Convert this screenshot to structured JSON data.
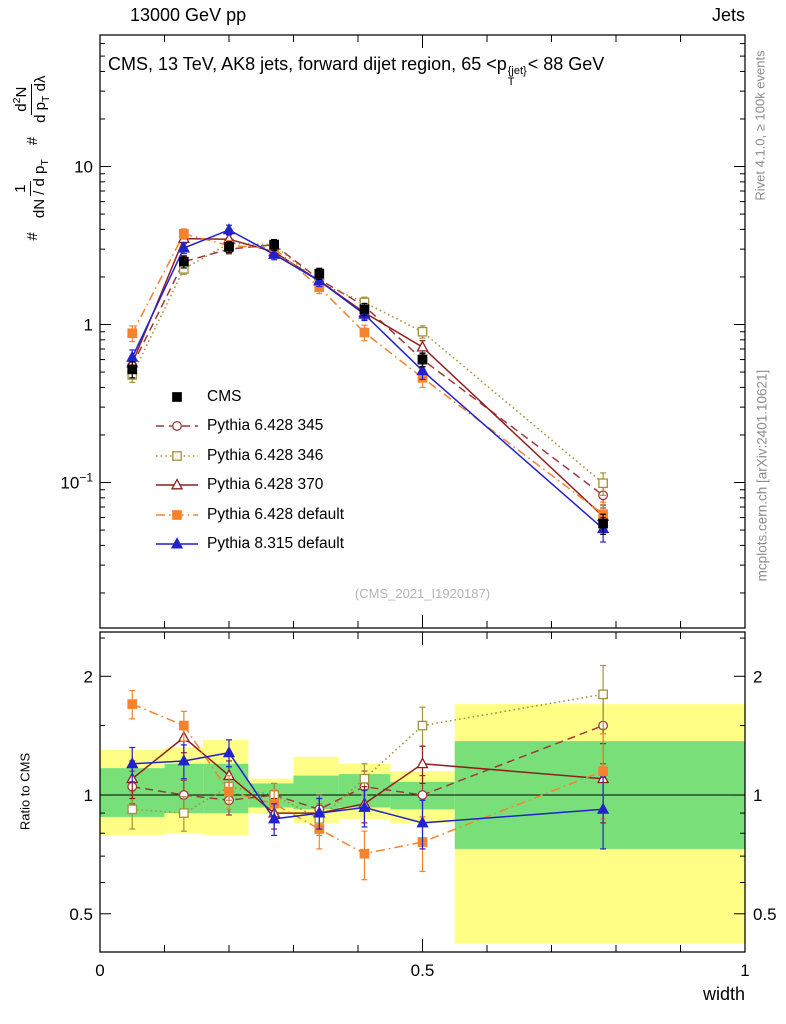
{
  "header": {
    "left": "13000 GeV pp",
    "right": "Jets"
  },
  "title": {
    "a": "CMS, 13 TeV, AK8 jets, forward dijet region, 65 <",
    "p": "p",
    "sup": "{jet}",
    "sub": "T",
    "b": "< 88 GeV"
  },
  "ylabel": {
    "hash1": "#",
    "f1_num": "1",
    "f1_den_a": "dN / d p",
    "f1_den_sub": "T",
    "hash2": "#",
    "f2_num_a": "d",
    "f2_num_sup": "2",
    "f2_num_b": "N",
    "f2_den_a": "d p",
    "f2_den_sub": "T",
    "f2_den_b": " dλ"
  },
  "watermark": "(CMS_2021_I1920187)",
  "side_notes": {
    "right_top": "Rivet 4.1.0, ≥ 100k events",
    "right_bottom": "mcplots.cern.ch [arXiv:2401.10621]"
  },
  "chart_data": {
    "type": "line",
    "x_label": "width",
    "x_lim": [
      0,
      1
    ],
    "x_ticks": [
      0,
      0.5,
      1
    ],
    "x_minor_step": 0.1,
    "x": [
      0.05,
      0.13,
      0.2,
      0.27,
      0.34,
      0.41,
      0.5,
      0.78
    ],
    "main_panel": {
      "scale": "log",
      "y_lim": [
        0.012,
        68
      ],
      "y_ticks": [
        0.1,
        1,
        10
      ]
    },
    "ratio_panel": {
      "scale": "log",
      "y_lim": [
        0.4,
        2.59
      ],
      "y_ticks": [
        0.5,
        1,
        2
      ],
      "y_minor": [
        0.6,
        0.7,
        0.8,
        0.9,
        1.5,
        2.5
      ],
      "label": "Ratio to CMS",
      "reference": 1
    },
    "series": [
      {
        "name": "CMS",
        "color": "#000000",
        "marker": "square",
        "fill": "filled",
        "dash": "none",
        "values": [
          0.52,
          2.5,
          3.1,
          3.2,
          2.1,
          1.25,
          0.6,
          0.055
        ],
        "errors": [
          0.06,
          0.22,
          0.25,
          0.25,
          0.17,
          0.11,
          0.06,
          0.008
        ]
      },
      {
        "name": "Pythia 6.428 345",
        "color": "#9e3a3a",
        "marker": "circle",
        "fill": "open",
        "dash": "dashed",
        "values": [
          0.55,
          2.5,
          3.0,
          3.2,
          1.93,
          1.31,
          0.6,
          0.083
        ],
        "errors": [
          0.05,
          0.18,
          0.2,
          0.2,
          0.14,
          0.11,
          0.06,
          0.014
        ],
        "ratio": [
          1.05,
          1.0,
          0.97,
          1.0,
          0.92,
          1.05,
          1.0,
          1.5
        ],
        "ratio_errors": [
          0.1,
          0.09,
          0.08,
          0.07,
          0.08,
          0.1,
          0.12,
          0.3
        ]
      },
      {
        "name": "Pythia 6.428 346",
        "color": "#a3913d",
        "marker": "square",
        "fill": "open",
        "dash": "dotted",
        "values": [
          0.48,
          2.25,
          3.26,
          3.2,
          1.83,
          1.38,
          0.9,
          0.099
        ],
        "errors": [
          0.05,
          0.17,
          0.2,
          0.2,
          0.14,
          0.11,
          0.08,
          0.016
        ],
        "ratio": [
          0.92,
          0.9,
          1.05,
          1.0,
          0.87,
          1.1,
          1.5,
          1.8
        ],
        "ratio_errors": [
          0.1,
          0.09,
          0.08,
          0.07,
          0.08,
          0.1,
          0.17,
          0.33
        ]
      },
      {
        "name": "Pythia 6.428 370",
        "color": "#8f1f1f",
        "marker": "triangle",
        "fill": "open",
        "dash": "solid",
        "values": [
          0.57,
          3.5,
          3.47,
          2.88,
          1.89,
          1.19,
          0.72,
          0.061
        ],
        "errors": [
          0.06,
          0.25,
          0.25,
          0.22,
          0.15,
          0.11,
          0.07,
          0.011
        ],
        "ratio": [
          1.1,
          1.4,
          1.12,
          0.9,
          0.9,
          0.95,
          1.2,
          1.1
        ],
        "ratio_errors": [
          0.12,
          0.12,
          0.1,
          0.08,
          0.08,
          0.1,
          0.13,
          0.25
        ]
      },
      {
        "name": "Pythia 6.428 default",
        "color": "#f5832d",
        "marker": "square",
        "fill": "filled",
        "dash": "dashdot",
        "values": [
          0.88,
          3.75,
          3.16,
          3.04,
          1.72,
          0.89,
          0.46,
          0.063
        ],
        "errors": [
          0.1,
          0.28,
          0.24,
          0.23,
          0.15,
          0.1,
          0.06,
          0.012
        ],
        "ratio": [
          1.7,
          1.5,
          1.02,
          0.95,
          0.82,
          0.71,
          0.76,
          1.15
        ],
        "ratio_errors": [
          0.14,
          0.13,
          0.1,
          0.08,
          0.09,
          0.1,
          0.12,
          0.28
        ]
      },
      {
        "name": "Pythia 8.315 default",
        "color": "#2222cc",
        "marker": "triangle",
        "fill": "filled",
        "dash": "solid",
        "values": [
          0.62,
          3.05,
          3.97,
          2.78,
          1.89,
          1.16,
          0.51,
          0.051
        ],
        "errors": [
          0.07,
          0.24,
          0.28,
          0.21,
          0.15,
          0.1,
          0.06,
          0.009
        ],
        "ratio": [
          1.2,
          1.22,
          1.28,
          0.87,
          0.9,
          0.93,
          0.85,
          0.92
        ],
        "ratio_errors": [
          0.12,
          0.12,
          0.1,
          0.08,
          0.08,
          0.1,
          0.12,
          0.19
        ]
      }
    ],
    "bands": [
      {
        "x0": 0.0,
        "x1": 0.1,
        "yellow": [
          0.79,
          1.3
        ],
        "green": [
          0.88,
          1.17
        ]
      },
      {
        "x0": 0.1,
        "x1": 0.16,
        "yellow": [
          0.8,
          1.32
        ],
        "green": [
          0.9,
          1.2
        ]
      },
      {
        "x0": 0.16,
        "x1": 0.23,
        "yellow": [
          0.79,
          1.38
        ],
        "green": [
          0.9,
          1.2
        ]
      },
      {
        "x0": 0.23,
        "x1": 0.3,
        "yellow": [
          0.9,
          1.1
        ],
        "green": [
          0.93,
          1.07
        ]
      },
      {
        "x0": 0.3,
        "x1": 0.37,
        "yellow": [
          0.85,
          1.25
        ],
        "green": [
          0.92,
          1.12
        ]
      },
      {
        "x0": 0.37,
        "x1": 0.45,
        "yellow": [
          0.87,
          1.2
        ],
        "green": [
          0.93,
          1.13
        ]
      },
      {
        "x0": 0.45,
        "x1": 0.55,
        "yellow": [
          0.85,
          1.15
        ],
        "green": [
          0.92,
          1.08
        ]
      },
      {
        "x0": 0.55,
        "x1": 1.0,
        "yellow": [
          0.42,
          1.7
        ],
        "green": [
          0.73,
          1.37
        ]
      }
    ],
    "band_colors": {
      "yellow": "#ffff85",
      "green": "#79e079"
    }
  }
}
